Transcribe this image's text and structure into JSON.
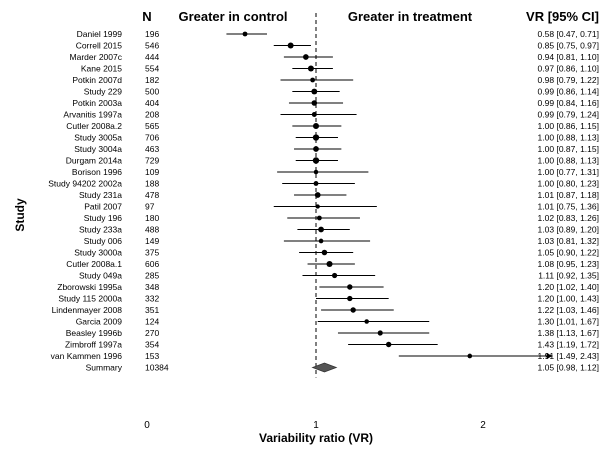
{
  "chart_data": {
    "type": "forest",
    "headers": {
      "n": "N",
      "left": "Greater in control",
      "right": "Greater in treatment",
      "ci": "VR [95% CI]"
    },
    "xlabel": "Variability ratio (VR)",
    "ylabel": "Study",
    "xlim": [
      0,
      2.4
    ],
    "xticks": [
      "0",
      "1",
      "2"
    ],
    "reference_line": 1,
    "studies": [
      {
        "name": "Daniel 1999",
        "n": "196",
        "vr": 0.58,
        "lo": 0.47,
        "hi": 0.71,
        "ci_text": "0.58 [0.47, 0.71]"
      },
      {
        "name": "Correll 2015",
        "n": "546",
        "vr": 0.85,
        "lo": 0.75,
        "hi": 0.97,
        "ci_text": "0.85 [0.75, 0.97]"
      },
      {
        "name": "Marder 2007c",
        "n": "444",
        "vr": 0.94,
        "lo": 0.81,
        "hi": 1.1,
        "ci_text": "0.94 [0.81, 1.10]"
      },
      {
        "name": "Kane 2015",
        "n": "554",
        "vr": 0.97,
        "lo": 0.86,
        "hi": 1.1,
        "ci_text": "0.97 [0.86, 1.10]"
      },
      {
        "name": "Potkin 2007d",
        "n": "182",
        "vr": 0.98,
        "lo": 0.79,
        "hi": 1.22,
        "ci_text": "0.98 [0.79, 1.22]"
      },
      {
        "name": "Study 229",
        "n": "500",
        "vr": 0.99,
        "lo": 0.86,
        "hi": 1.14,
        "ci_text": "0.99 [0.86, 1.14]"
      },
      {
        "name": "Potkin 2003a",
        "n": "404",
        "vr": 0.99,
        "lo": 0.84,
        "hi": 1.16,
        "ci_text": "0.99 [0.84, 1.16]"
      },
      {
        "name": "Arvanitis 1997a",
        "n": "208",
        "vr": 0.99,
        "lo": 0.79,
        "hi": 1.24,
        "ci_text": "0.99 [0.79, 1.24]"
      },
      {
        "name": "Cutler 2008a.2",
        "n": "565",
        "vr": 1.0,
        "lo": 0.86,
        "hi": 1.15,
        "ci_text": "1.00 [0.86, 1.15]"
      },
      {
        "name": "Study 3005a",
        "n": "706",
        "vr": 1.0,
        "lo": 0.88,
        "hi": 1.13,
        "ci_text": "1.00 [0.88, 1.13]"
      },
      {
        "name": "Study 3004a",
        "n": "463",
        "vr": 1.0,
        "lo": 0.87,
        "hi": 1.15,
        "ci_text": "1.00 [0.87, 1.15]"
      },
      {
        "name": "Durgam 2014a",
        "n": "729",
        "vr": 1.0,
        "lo": 0.88,
        "hi": 1.13,
        "ci_text": "1.00 [0.88, 1.13]"
      },
      {
        "name": "Borison 1996",
        "n": "109",
        "vr": 1.0,
        "lo": 0.77,
        "hi": 1.31,
        "ci_text": "1.00 [0.77, 1.31]"
      },
      {
        "name": "Study 94202 2002a",
        "n": "188",
        "vr": 1.0,
        "lo": 0.8,
        "hi": 1.23,
        "ci_text": "1.00 [0.80, 1.23]"
      },
      {
        "name": "Study 231a",
        "n": "478",
        "vr": 1.01,
        "lo": 0.87,
        "hi": 1.18,
        "ci_text": "1.01 [0.87, 1.18]"
      },
      {
        "name": "Patil 2007",
        "n": "97",
        "vr": 1.01,
        "lo": 0.75,
        "hi": 1.36,
        "ci_text": "1.01 [0.75, 1.36]"
      },
      {
        "name": "Study 196",
        "n": "180",
        "vr": 1.02,
        "lo": 0.83,
        "hi": 1.26,
        "ci_text": "1.02 [0.83, 1.26]"
      },
      {
        "name": "Study 233a",
        "n": "488",
        "vr": 1.03,
        "lo": 0.89,
        "hi": 1.2,
        "ci_text": "1.03 [0.89, 1.20]"
      },
      {
        "name": "Study 006",
        "n": "149",
        "vr": 1.03,
        "lo": 0.81,
        "hi": 1.32,
        "ci_text": "1.03 [0.81, 1.32]"
      },
      {
        "name": "Study 3000a",
        "n": "375",
        "vr": 1.05,
        "lo": 0.9,
        "hi": 1.22,
        "ci_text": "1.05 [0.90, 1.22]"
      },
      {
        "name": "Cutler 2008a.1",
        "n": "606",
        "vr": 1.08,
        "lo": 0.95,
        "hi": 1.23,
        "ci_text": "1.08 [0.95, 1.23]"
      },
      {
        "name": "Study 049a",
        "n": "285",
        "vr": 1.11,
        "lo": 0.92,
        "hi": 1.35,
        "ci_text": "1.11 [0.92, 1.35]"
      },
      {
        "name": "Zborowski 1995a",
        "n": "348",
        "vr": 1.2,
        "lo": 1.02,
        "hi": 1.4,
        "ci_text": "1.20 [1.02, 1.40]"
      },
      {
        "name": "Study 115 2000a",
        "n": "332",
        "vr": 1.2,
        "lo": 1.0,
        "hi": 1.43,
        "ci_text": "1.20 [1.00, 1.43]"
      },
      {
        "name": "Lindenmayer 2008",
        "n": "351",
        "vr": 1.22,
        "lo": 1.03,
        "hi": 1.46,
        "ci_text": "1.22 [1.03, 1.46]"
      },
      {
        "name": "Garcia 2009",
        "n": "124",
        "vr": 1.3,
        "lo": 1.01,
        "hi": 1.67,
        "ci_text": "1.30 [1.01, 1.67]"
      },
      {
        "name": "Beasley 1996b",
        "n": "270",
        "vr": 1.38,
        "lo": 1.13,
        "hi": 1.67,
        "ci_text": "1.38 [1.13, 1.67]"
      },
      {
        "name": "Zimbroff 1997a",
        "n": "354",
        "vr": 1.43,
        "lo": 1.19,
        "hi": 1.72,
        "ci_text": "1.43 [1.19, 1.72]"
      },
      {
        "name": "van Kammen 1996",
        "n": "153",
        "vr": 1.91,
        "lo": 1.49,
        "hi": 2.43,
        "ci_text": "1.91 [1.49, 2.43]"
      }
    ],
    "summary": {
      "name": "Summary",
      "n": "10384",
      "vr": 1.05,
      "lo": 0.98,
      "hi": 1.12,
      "ci_text": "1.05 [0.98, 1.12]"
    }
  }
}
